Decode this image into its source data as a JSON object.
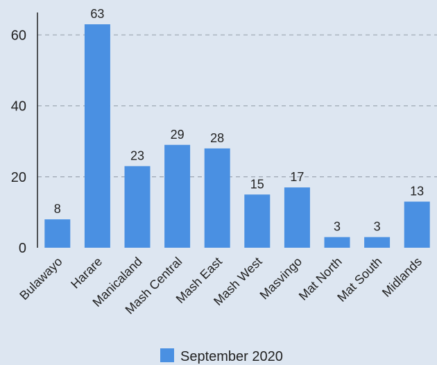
{
  "chart_data": {
    "type": "bar",
    "categories": [
      "Bulawayo",
      "Harare",
      "Manicaland",
      "Mash Central",
      "Mash East",
      "Mash West",
      "Masvingo",
      "Mat North",
      "Mat South",
      "Midlands"
    ],
    "series": [
      {
        "name": "September 2020",
        "values": [
          8,
          63,
          23,
          29,
          28,
          15,
          17,
          3,
          3,
          13
        ],
        "color": "#4a90e2"
      }
    ],
    "ylim": [
      0,
      63
    ],
    "yticks": [
      0,
      20,
      40,
      60
    ],
    "grid": "dashed horizontal",
    "legend_position": "bottom",
    "data_labels": true,
    "background": "#dde6f1"
  }
}
